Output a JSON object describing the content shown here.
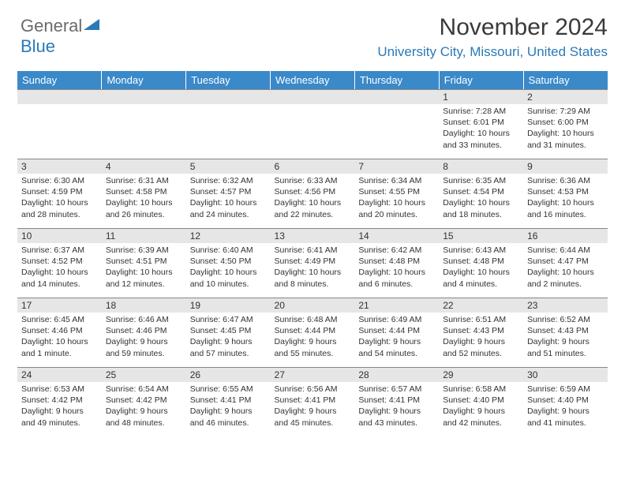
{
  "logo": {
    "part1": "General",
    "part2": "Blue"
  },
  "header": {
    "month_title": "November 2024",
    "location": "University City, Missouri, United States"
  },
  "calendar": {
    "day_headers": [
      "Sunday",
      "Monday",
      "Tuesday",
      "Wednesday",
      "Thursday",
      "Friday",
      "Saturday"
    ],
    "header_bg": "#3a89c9",
    "weeks": [
      [
        {
          "blank": true
        },
        {
          "blank": true
        },
        {
          "blank": true
        },
        {
          "blank": true
        },
        {
          "blank": true
        },
        {
          "num": "1",
          "sunrise": "Sunrise: 7:28 AM",
          "sunset": "Sunset: 6:01 PM",
          "daylight": "Daylight: 10 hours and 33 minutes."
        },
        {
          "num": "2",
          "sunrise": "Sunrise: 7:29 AM",
          "sunset": "Sunset: 6:00 PM",
          "daylight": "Daylight: 10 hours and 31 minutes."
        }
      ],
      [
        {
          "num": "3",
          "sunrise": "Sunrise: 6:30 AM",
          "sunset": "Sunset: 4:59 PM",
          "daylight": "Daylight: 10 hours and 28 minutes."
        },
        {
          "num": "4",
          "sunrise": "Sunrise: 6:31 AM",
          "sunset": "Sunset: 4:58 PM",
          "daylight": "Daylight: 10 hours and 26 minutes."
        },
        {
          "num": "5",
          "sunrise": "Sunrise: 6:32 AM",
          "sunset": "Sunset: 4:57 PM",
          "daylight": "Daylight: 10 hours and 24 minutes."
        },
        {
          "num": "6",
          "sunrise": "Sunrise: 6:33 AM",
          "sunset": "Sunset: 4:56 PM",
          "daylight": "Daylight: 10 hours and 22 minutes."
        },
        {
          "num": "7",
          "sunrise": "Sunrise: 6:34 AM",
          "sunset": "Sunset: 4:55 PM",
          "daylight": "Daylight: 10 hours and 20 minutes."
        },
        {
          "num": "8",
          "sunrise": "Sunrise: 6:35 AM",
          "sunset": "Sunset: 4:54 PM",
          "daylight": "Daylight: 10 hours and 18 minutes."
        },
        {
          "num": "9",
          "sunrise": "Sunrise: 6:36 AM",
          "sunset": "Sunset: 4:53 PM",
          "daylight": "Daylight: 10 hours and 16 minutes."
        }
      ],
      [
        {
          "num": "10",
          "sunrise": "Sunrise: 6:37 AM",
          "sunset": "Sunset: 4:52 PM",
          "daylight": "Daylight: 10 hours and 14 minutes."
        },
        {
          "num": "11",
          "sunrise": "Sunrise: 6:39 AM",
          "sunset": "Sunset: 4:51 PM",
          "daylight": "Daylight: 10 hours and 12 minutes."
        },
        {
          "num": "12",
          "sunrise": "Sunrise: 6:40 AM",
          "sunset": "Sunset: 4:50 PM",
          "daylight": "Daylight: 10 hours and 10 minutes."
        },
        {
          "num": "13",
          "sunrise": "Sunrise: 6:41 AM",
          "sunset": "Sunset: 4:49 PM",
          "daylight": "Daylight: 10 hours and 8 minutes."
        },
        {
          "num": "14",
          "sunrise": "Sunrise: 6:42 AM",
          "sunset": "Sunset: 4:48 PM",
          "daylight": "Daylight: 10 hours and 6 minutes."
        },
        {
          "num": "15",
          "sunrise": "Sunrise: 6:43 AM",
          "sunset": "Sunset: 4:48 PM",
          "daylight": "Daylight: 10 hours and 4 minutes."
        },
        {
          "num": "16",
          "sunrise": "Sunrise: 6:44 AM",
          "sunset": "Sunset: 4:47 PM",
          "daylight": "Daylight: 10 hours and 2 minutes."
        }
      ],
      [
        {
          "num": "17",
          "sunrise": "Sunrise: 6:45 AM",
          "sunset": "Sunset: 4:46 PM",
          "daylight": "Daylight: 10 hours and 1 minute."
        },
        {
          "num": "18",
          "sunrise": "Sunrise: 6:46 AM",
          "sunset": "Sunset: 4:46 PM",
          "daylight": "Daylight: 9 hours and 59 minutes."
        },
        {
          "num": "19",
          "sunrise": "Sunrise: 6:47 AM",
          "sunset": "Sunset: 4:45 PM",
          "daylight": "Daylight: 9 hours and 57 minutes."
        },
        {
          "num": "20",
          "sunrise": "Sunrise: 6:48 AM",
          "sunset": "Sunset: 4:44 PM",
          "daylight": "Daylight: 9 hours and 55 minutes."
        },
        {
          "num": "21",
          "sunrise": "Sunrise: 6:49 AM",
          "sunset": "Sunset: 4:44 PM",
          "daylight": "Daylight: 9 hours and 54 minutes."
        },
        {
          "num": "22",
          "sunrise": "Sunrise: 6:51 AM",
          "sunset": "Sunset: 4:43 PM",
          "daylight": "Daylight: 9 hours and 52 minutes."
        },
        {
          "num": "23",
          "sunrise": "Sunrise: 6:52 AM",
          "sunset": "Sunset: 4:43 PM",
          "daylight": "Daylight: 9 hours and 51 minutes."
        }
      ],
      [
        {
          "num": "24",
          "sunrise": "Sunrise: 6:53 AM",
          "sunset": "Sunset: 4:42 PM",
          "daylight": "Daylight: 9 hours and 49 minutes."
        },
        {
          "num": "25",
          "sunrise": "Sunrise: 6:54 AM",
          "sunset": "Sunset: 4:42 PM",
          "daylight": "Daylight: 9 hours and 48 minutes."
        },
        {
          "num": "26",
          "sunrise": "Sunrise: 6:55 AM",
          "sunset": "Sunset: 4:41 PM",
          "daylight": "Daylight: 9 hours and 46 minutes."
        },
        {
          "num": "27",
          "sunrise": "Sunrise: 6:56 AM",
          "sunset": "Sunset: 4:41 PM",
          "daylight": "Daylight: 9 hours and 45 minutes."
        },
        {
          "num": "28",
          "sunrise": "Sunrise: 6:57 AM",
          "sunset": "Sunset: 4:41 PM",
          "daylight": "Daylight: 9 hours and 43 minutes."
        },
        {
          "num": "29",
          "sunrise": "Sunrise: 6:58 AM",
          "sunset": "Sunset: 4:40 PM",
          "daylight": "Daylight: 9 hours and 42 minutes."
        },
        {
          "num": "30",
          "sunrise": "Sunrise: 6:59 AM",
          "sunset": "Sunset: 4:40 PM",
          "daylight": "Daylight: 9 hours and 41 minutes."
        }
      ]
    ]
  }
}
